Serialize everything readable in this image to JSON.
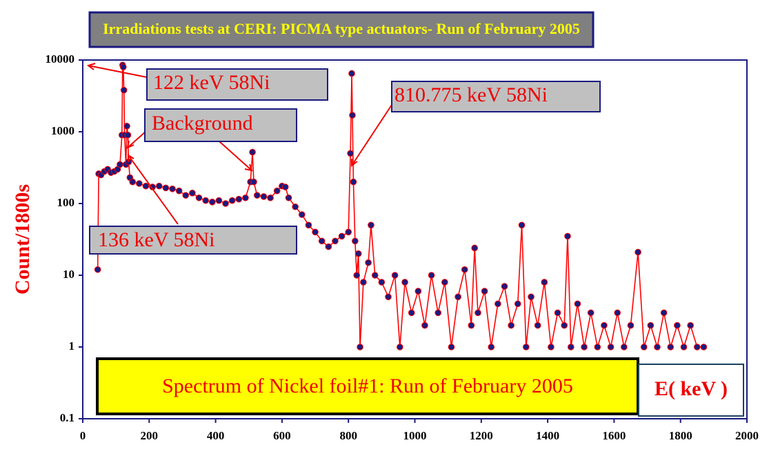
{
  "chart_data": {
    "type": "line",
    "title": "Irradiations tests at CERI: PICMA type actuators- Run of February 2005",
    "y_label": "Count/1800s",
    "x_label": "E( keV )",
    "subtitle": "Spectrum of Nickel foil#1: Run of February 2005",
    "annotations": [
      "122 keV 58Ni",
      "Background",
      "810.775 keV 58Ni",
      "136 keV 58Ni"
    ],
    "log_y": true,
    "xlim": [
      0,
      2000
    ],
    "xticks": [
      0,
      200,
      400,
      600,
      800,
      1000,
      1200,
      1400,
      1600,
      1800,
      2000
    ],
    "ylim": [
      0.1,
      10000
    ],
    "yticks": [
      0.1,
      1,
      10,
      100,
      1000,
      10000
    ],
    "series": [
      {
        "color": "#ff0000",
        "marker_color": "#1a1a80",
        "x": [
          45,
          48,
          55,
          65,
          75,
          85,
          95,
          105,
          112,
          118,
          120,
          122,
          124,
          126,
          130,
          133,
          136,
          138,
          142,
          150,
          170,
          190,
          210,
          230,
          250,
          270,
          290,
          310,
          330,
          350,
          370,
          390,
          410,
          430,
          450,
          470,
          490,
          505,
          511,
          515,
          525,
          545,
          565,
          585,
          600,
          610,
          620,
          640,
          660,
          680,
          700,
          720,
          740,
          760,
          780,
          800,
          806,
          810,
          812,
          815,
          820,
          825,
          830,
          835,
          845,
          860,
          868,
          880,
          900,
          920,
          940,
          955,
          970,
          990,
          1010,
          1030,
          1050,
          1070,
          1090,
          1110,
          1130,
          1150,
          1170,
          1180,
          1190,
          1210,
          1230,
          1250,
          1270,
          1290,
          1310,
          1322,
          1335,
          1350,
          1370,
          1390,
          1410,
          1430,
          1450,
          1460,
          1470,
          1490,
          1510,
          1530,
          1550,
          1570,
          1590,
          1610,
          1630,
          1650,
          1672,
          1690,
          1710,
          1730,
          1750,
          1770,
          1790,
          1810,
          1830,
          1850,
          1870
        ],
        "values": [
          12,
          260,
          250,
          280,
          300,
          270,
          280,
          300,
          350,
          900,
          8500,
          8000,
          3800,
          900,
          350,
          1200,
          900,
          380,
          230,
          200,
          190,
          175,
          170,
          175,
          165,
          160,
          150,
          130,
          140,
          120,
          110,
          105,
          110,
          100,
          110,
          115,
          120,
          200,
          520,
          200,
          130,
          125,
          120,
          150,
          175,
          170,
          120,
          90,
          70,
          50,
          40,
          30,
          25,
          30,
          35,
          40,
          500,
          6500,
          1700,
          200,
          30,
          10,
          20,
          1,
          8,
          15,
          50,
          10,
          8,
          5,
          10,
          1,
          8,
          3,
          6,
          2,
          10,
          3,
          8,
          1,
          5,
          12,
          2,
          24,
          3,
          6,
          1,
          4,
          7,
          2,
          4,
          50,
          1,
          5,
          2,
          8,
          1,
          3,
          2,
          35,
          1,
          4,
          1,
          3,
          1,
          2,
          1,
          3,
          1,
          2,
          21,
          1,
          2,
          1,
          3,
          1,
          2,
          1,
          2,
          1,
          1
        ]
      }
    ]
  }
}
